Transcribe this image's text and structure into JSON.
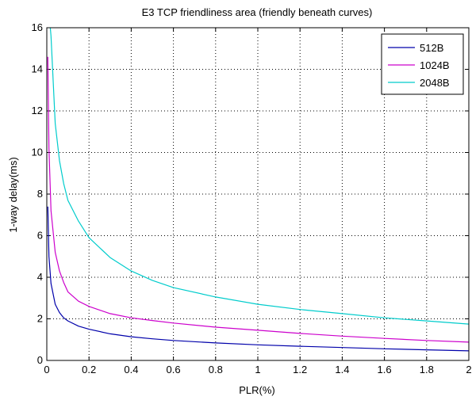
{
  "chart_data": {
    "type": "line",
    "title": "E3 TCP friendliness area (friendly beneath curves)",
    "xlabel": "PLR(%)",
    "ylabel": "1-way delay(ms)",
    "xlim": [
      0,
      2
    ],
    "ylim": [
      0,
      16
    ],
    "xticks": [
      0,
      0.2,
      0.4,
      0.6,
      0.8,
      1,
      1.2,
      1.4,
      1.6,
      1.8,
      2
    ],
    "xtick_labels": [
      "0",
      "0.2",
      "0.4",
      "0.6",
      "0.8",
      "1",
      "1.2",
      "1.4",
      "1.6",
      "1.8",
      "2"
    ],
    "yticks": [
      0,
      2,
      4,
      6,
      8,
      10,
      12,
      14,
      16
    ],
    "ytick_labels": [
      "0",
      "2",
      "4",
      "6",
      "8",
      "10",
      "12",
      "14",
      "16"
    ],
    "grid": true,
    "legend_position": "top-right",
    "x": [
      0.005,
      0.01,
      0.02,
      0.04,
      0.06,
      0.08,
      0.1,
      0.15,
      0.2,
      0.3,
      0.4,
      0.5,
      0.6,
      0.8,
      1.0,
      1.2,
      1.4,
      1.6,
      1.8,
      2.0
    ],
    "series": [
      {
        "name": "512B",
        "color": "#0000aa",
        "values": [
          7.4,
          5.0,
          3.7,
          2.7,
          2.3,
          2.05,
          1.9,
          1.65,
          1.5,
          1.28,
          1.14,
          1.04,
          0.96,
          0.84,
          0.75,
          0.68,
          0.62,
          0.56,
          0.51,
          0.46
        ]
      },
      {
        "name": "1024B",
        "color": "#cc00cc",
        "values": [
          14.6,
          10.2,
          7.2,
          5.2,
          4.3,
          3.75,
          3.3,
          2.85,
          2.6,
          2.25,
          2.05,
          1.92,
          1.8,
          1.6,
          1.45,
          1.3,
          1.17,
          1.06,
          0.96,
          0.88
        ]
      },
      {
        "name": "2048B",
        "color": "#00cccc",
        "values": [
          null,
          null,
          15.6,
          11.4,
          9.6,
          8.5,
          7.7,
          6.7,
          5.9,
          4.95,
          4.3,
          3.85,
          3.5,
          3.05,
          2.7,
          2.45,
          2.25,
          2.05,
          1.9,
          1.75
        ]
      }
    ]
  }
}
